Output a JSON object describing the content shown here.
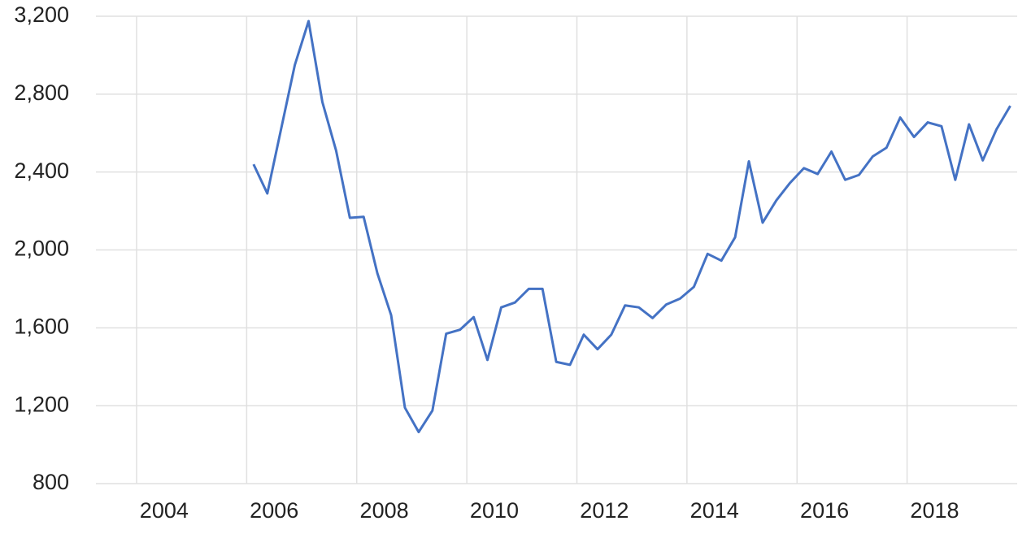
{
  "chart_data": {
    "type": "line",
    "x": [
      2006.125,
      2006.375,
      2006.625,
      2006.875,
      2007.125,
      2007.375,
      2007.625,
      2007.875,
      2008.125,
      2008.375,
      2008.625,
      2008.875,
      2009.125,
      2009.375,
      2009.625,
      2009.875,
      2010.125,
      2010.375,
      2010.625,
      2010.875,
      2011.125,
      2011.375,
      2011.625,
      2011.875,
      2012.125,
      2012.375,
      2012.625,
      2012.875,
      2013.125,
      2013.375,
      2013.625,
      2013.875,
      2014.125,
      2014.375,
      2014.625,
      2014.875,
      2015.125,
      2015.375,
      2015.625,
      2015.875,
      2016.125,
      2016.375,
      2016.625,
      2016.875,
      2017.125,
      2017.375,
      2017.625,
      2017.875,
      2018.125,
      2018.375,
      2018.625,
      2018.875,
      2019.125,
      2019.375,
      2019.625,
      2019.875
    ],
    "series": [
      {
        "color": "#4472c4",
        "values": [
          2440,
          2290,
          2620,
          2950,
          3175,
          2760,
          2510,
          2165,
          2170,
          1880,
          1665,
          1190,
          1065,
          1175,
          1570,
          1590,
          1655,
          1435,
          1705,
          1730,
          1800,
          1800,
          1425,
          1410,
          1565,
          1490,
          1565,
          1715,
          1705,
          1650,
          1720,
          1750,
          1810,
          1980,
          1945,
          2065,
          2455,
          2140,
          2255,
          2345,
          2420,
          2390,
          2505,
          2360,
          2385,
          2480,
          2525,
          2680,
          2580,
          2655,
          2635,
          2360,
          2645,
          2460,
          2620,
          2740
        ]
      }
    ],
    "xlim": [
      2004,
      2020
    ],
    "xticks": [
      2004,
      2006,
      2008,
      2010,
      2012,
      2014,
      2016,
      2018
    ],
    "ylim": [
      800,
      3200
    ],
    "yticks": [
      800,
      {
        "value": 1200,
        "label": "1,200"
      },
      {
        "value": 1600,
        "label": "1,600"
      },
      {
        "value": 2000,
        "label": "2,000"
      },
      {
        "value": 2400,
        "label": "2,400"
      },
      {
        "value": 2800,
        "label": "2,800"
      },
      {
        "value": 3200,
        "label": "3,200"
      }
    ],
    "grid": true
  }
}
